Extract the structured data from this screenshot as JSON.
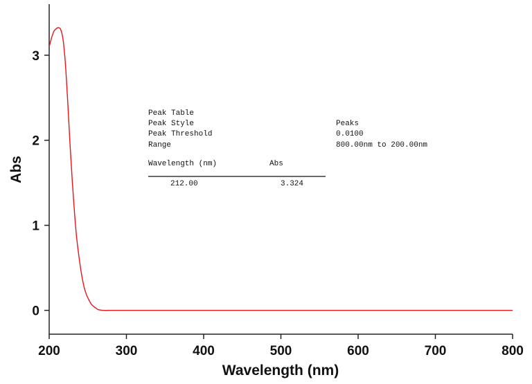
{
  "chart_data": {
    "type": "line",
    "xlabel": "Wavelength (nm)",
    "ylabel": "Abs",
    "xlim": [
      200,
      800
    ],
    "ylim": [
      -0.28,
      3.6
    ],
    "x_ticks": [
      200,
      300,
      400,
      500,
      600,
      700,
      800
    ],
    "y_ticks": [
      0,
      1,
      2,
      3
    ],
    "grid": false,
    "series": [
      {
        "color": "#e8141b",
        "x": [
          200,
          203,
          206,
          209,
          212,
          215,
          218,
          221,
          224,
          227,
          230,
          233,
          236,
          239,
          242,
          245,
          248,
          251,
          254,
          257,
          260,
          263,
          266,
          270,
          280,
          300,
          350,
          400,
          500,
          600,
          700,
          800
        ],
        "y": [
          3.1,
          3.2,
          3.28,
          3.31,
          3.324,
          3.3,
          3.18,
          2.9,
          2.45,
          1.95,
          1.5,
          1.12,
          0.82,
          0.6,
          0.42,
          0.28,
          0.19,
          0.13,
          0.08,
          0.05,
          0.03,
          0.01,
          0.004,
          0.0,
          0.0,
          0.0,
          0.0,
          0.0,
          0.0,
          0.0,
          0.0,
          0.0
        ]
      }
    ]
  },
  "peak_table": {
    "title": "Peak Table",
    "peak_style_label": "Peak Style",
    "peak_style_value": "Peaks",
    "threshold_label": "Peak Threshold",
    "threshold_value": "0.0100",
    "range_label": "Range",
    "range_value": "800.00nm to 200.00nm",
    "col_wavelength": "Wavelength (nm)",
    "col_abs": "Abs",
    "rows": [
      {
        "wavelength": "212.00",
        "abs": "3.324"
      }
    ]
  }
}
